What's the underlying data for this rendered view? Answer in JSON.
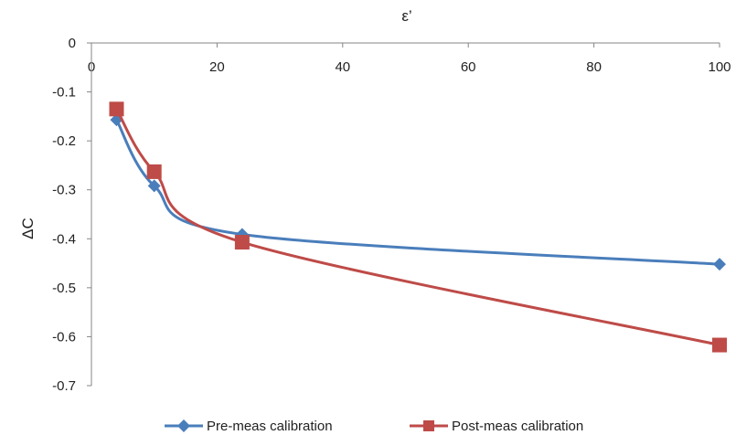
{
  "chart_data": {
    "type": "line",
    "xlabel": "ε’",
    "ylabel": "ΔC",
    "xlim": [
      0,
      100
    ],
    "ylim": [
      -0.7,
      0
    ],
    "x_ticks": [
      "0",
      "20",
      "40",
      "60",
      "80",
      "100"
    ],
    "y_ticks": [
      "0",
      "-0.1",
      "-0.2",
      "-0.3",
      "-0.4",
      "-0.5",
      "-0.6",
      "-0.7"
    ],
    "x_axis_position": "top",
    "grid": false,
    "legend_position": "bottom",
    "smooth": true,
    "series": [
      {
        "name": "Pre-meas calibration",
        "color": "#4a7ebb",
        "marker": "diamond",
        "x": [
          4,
          10,
          24,
          100
        ],
        "y": [
          -0.157,
          -0.292,
          -0.391,
          -0.452
        ]
      },
      {
        "name": "Post-meas calibration",
        "color": "#be4b48",
        "marker": "square",
        "x": [
          4,
          10,
          24,
          100
        ],
        "y": [
          -0.135,
          -0.263,
          -0.407,
          -0.617
        ]
      }
    ]
  }
}
